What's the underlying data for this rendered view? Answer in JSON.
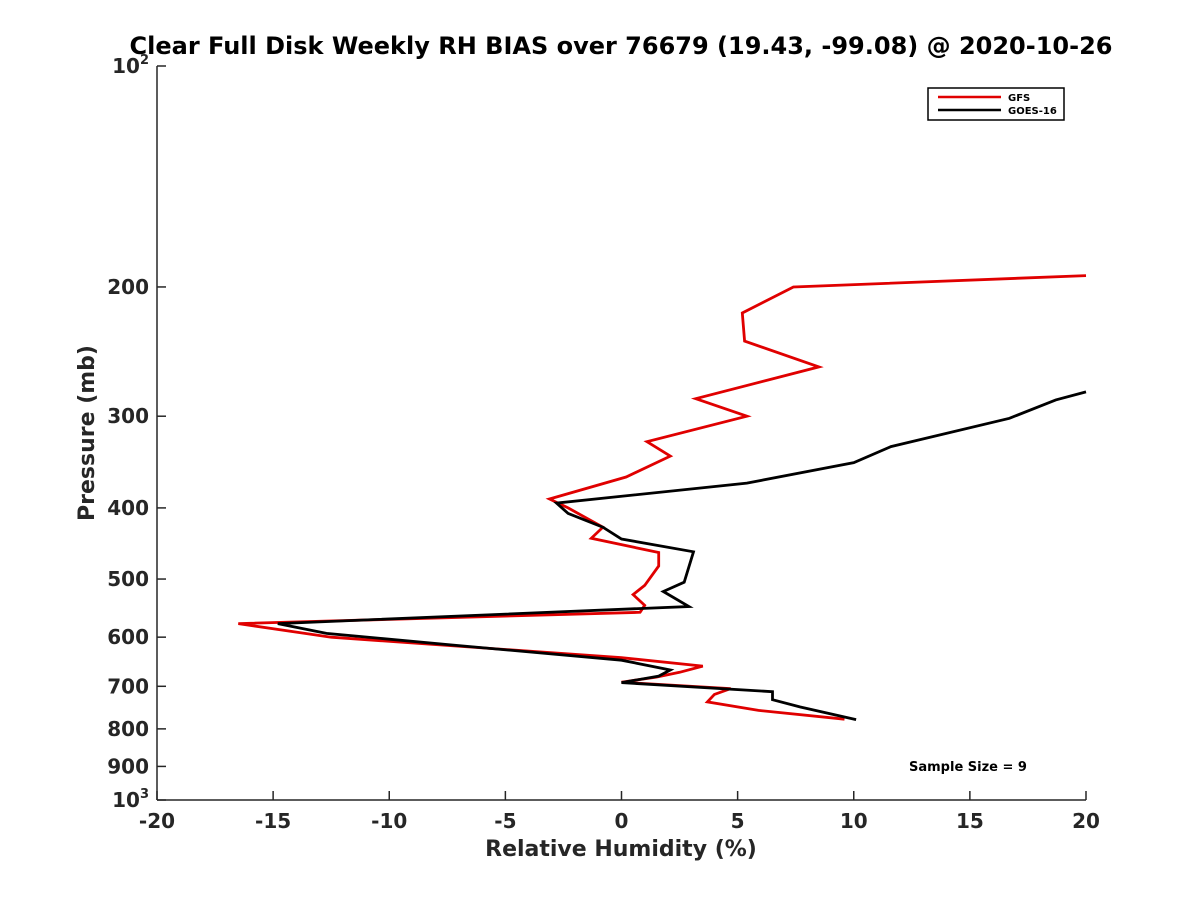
{
  "chart_data": {
    "type": "line",
    "title": "Clear Full Disk Weekly RH BIAS over 76679 (19.43, -99.08) @ 2020-10-26",
    "xlabel": "Relative Humidity (%)",
    "ylabel": "Pressure (mb)",
    "xlim": [
      -20,
      20
    ],
    "ylim": [
      1000,
      100
    ],
    "yscale": "log",
    "grid": false,
    "legend_position": "top-right",
    "x_ticks": [
      -20,
      -15,
      -10,
      -5,
      0,
      5,
      10,
      15,
      20
    ],
    "x_tick_labels": [
      "-20",
      "-15",
      "-10",
      "-5",
      "0",
      "5",
      "10",
      "15",
      "20"
    ],
    "y_ticks": [
      {
        "value": 100,
        "base": "10",
        "exp": "2"
      },
      {
        "value": 200,
        "label": "200"
      },
      {
        "value": 300,
        "label": "300"
      },
      {
        "value": 400,
        "label": "400"
      },
      {
        "value": 500,
        "label": "500"
      },
      {
        "value": 600,
        "label": "600"
      },
      {
        "value": 700,
        "label": "700"
      },
      {
        "value": 800,
        "label": "800"
      },
      {
        "value": 900,
        "label": "900"
      },
      {
        "value": 1000,
        "base": "10",
        "exp": "3"
      }
    ],
    "annotation": "Sample Size = 9",
    "series": [
      {
        "name": "GFS",
        "color": "#e00000",
        "points": [
          {
            "x": 20.0,
            "p": 193
          },
          {
            "x": 7.4,
            "p": 200
          },
          {
            "x": 5.2,
            "p": 217
          },
          {
            "x": 5.3,
            "p": 237
          },
          {
            "x": 8.5,
            "p": 257
          },
          {
            "x": 3.2,
            "p": 284
          },
          {
            "x": 5.4,
            "p": 300
          },
          {
            "x": 1.1,
            "p": 325
          },
          {
            "x": 2.1,
            "p": 340
          },
          {
            "x": 0.2,
            "p": 363
          },
          {
            "x": -3.1,
            "p": 389
          },
          {
            "x": -2.3,
            "p": 400
          },
          {
            "x": -0.8,
            "p": 425
          },
          {
            "x": -1.3,
            "p": 440
          },
          {
            "x": 1.6,
            "p": 460
          },
          {
            "x": 1.6,
            "p": 480
          },
          {
            "x": 1.0,
            "p": 510
          },
          {
            "x": 0.5,
            "p": 525
          },
          {
            "x": 1.0,
            "p": 543
          },
          {
            "x": 0.8,
            "p": 555
          },
          {
            "x": -16.5,
            "p": 575
          },
          {
            "x": -12.5,
            "p": 600
          },
          {
            "x": 0.0,
            "p": 640
          },
          {
            "x": 3.5,
            "p": 657
          },
          {
            "x": 2.5,
            "p": 670
          },
          {
            "x": 1.5,
            "p": 680
          },
          {
            "x": 0.0,
            "p": 691
          },
          {
            "x": 4.7,
            "p": 705
          },
          {
            "x": 4.0,
            "p": 718
          },
          {
            "x": 3.7,
            "p": 735
          },
          {
            "x": 5.9,
            "p": 755
          },
          {
            "x": 9.6,
            "p": 776
          }
        ]
      },
      {
        "name": "GOES-16",
        "color": "#000000",
        "points": [
          {
            "x": 20.0,
            "p": 278
          },
          {
            "x": 18.7,
            "p": 285
          },
          {
            "x": 16.7,
            "p": 302
          },
          {
            "x": 11.6,
            "p": 330
          },
          {
            "x": 10.0,
            "p": 347
          },
          {
            "x": 5.4,
            "p": 370
          },
          {
            "x": -2.8,
            "p": 394
          },
          {
            "x": -2.3,
            "p": 407
          },
          {
            "x": -0.8,
            "p": 425
          },
          {
            "x": 0.0,
            "p": 441
          },
          {
            "x": 3.1,
            "p": 459
          },
          {
            "x": 2.7,
            "p": 505
          },
          {
            "x": 1.8,
            "p": 520
          },
          {
            "x": 2.9,
            "p": 545
          },
          {
            "x": -14.8,
            "p": 575
          },
          {
            "x": -12.7,
            "p": 593
          },
          {
            "x": -7.3,
            "p": 615
          },
          {
            "x": 0.0,
            "p": 645
          },
          {
            "x": 2.1,
            "p": 665
          },
          {
            "x": 1.6,
            "p": 678
          },
          {
            "x": 0.0,
            "p": 692
          },
          {
            "x": 6.5,
            "p": 712
          },
          {
            "x": 6.5,
            "p": 730
          },
          {
            "x": 7.7,
            "p": 747
          },
          {
            "x": 10.1,
            "p": 777
          }
        ]
      }
    ]
  }
}
